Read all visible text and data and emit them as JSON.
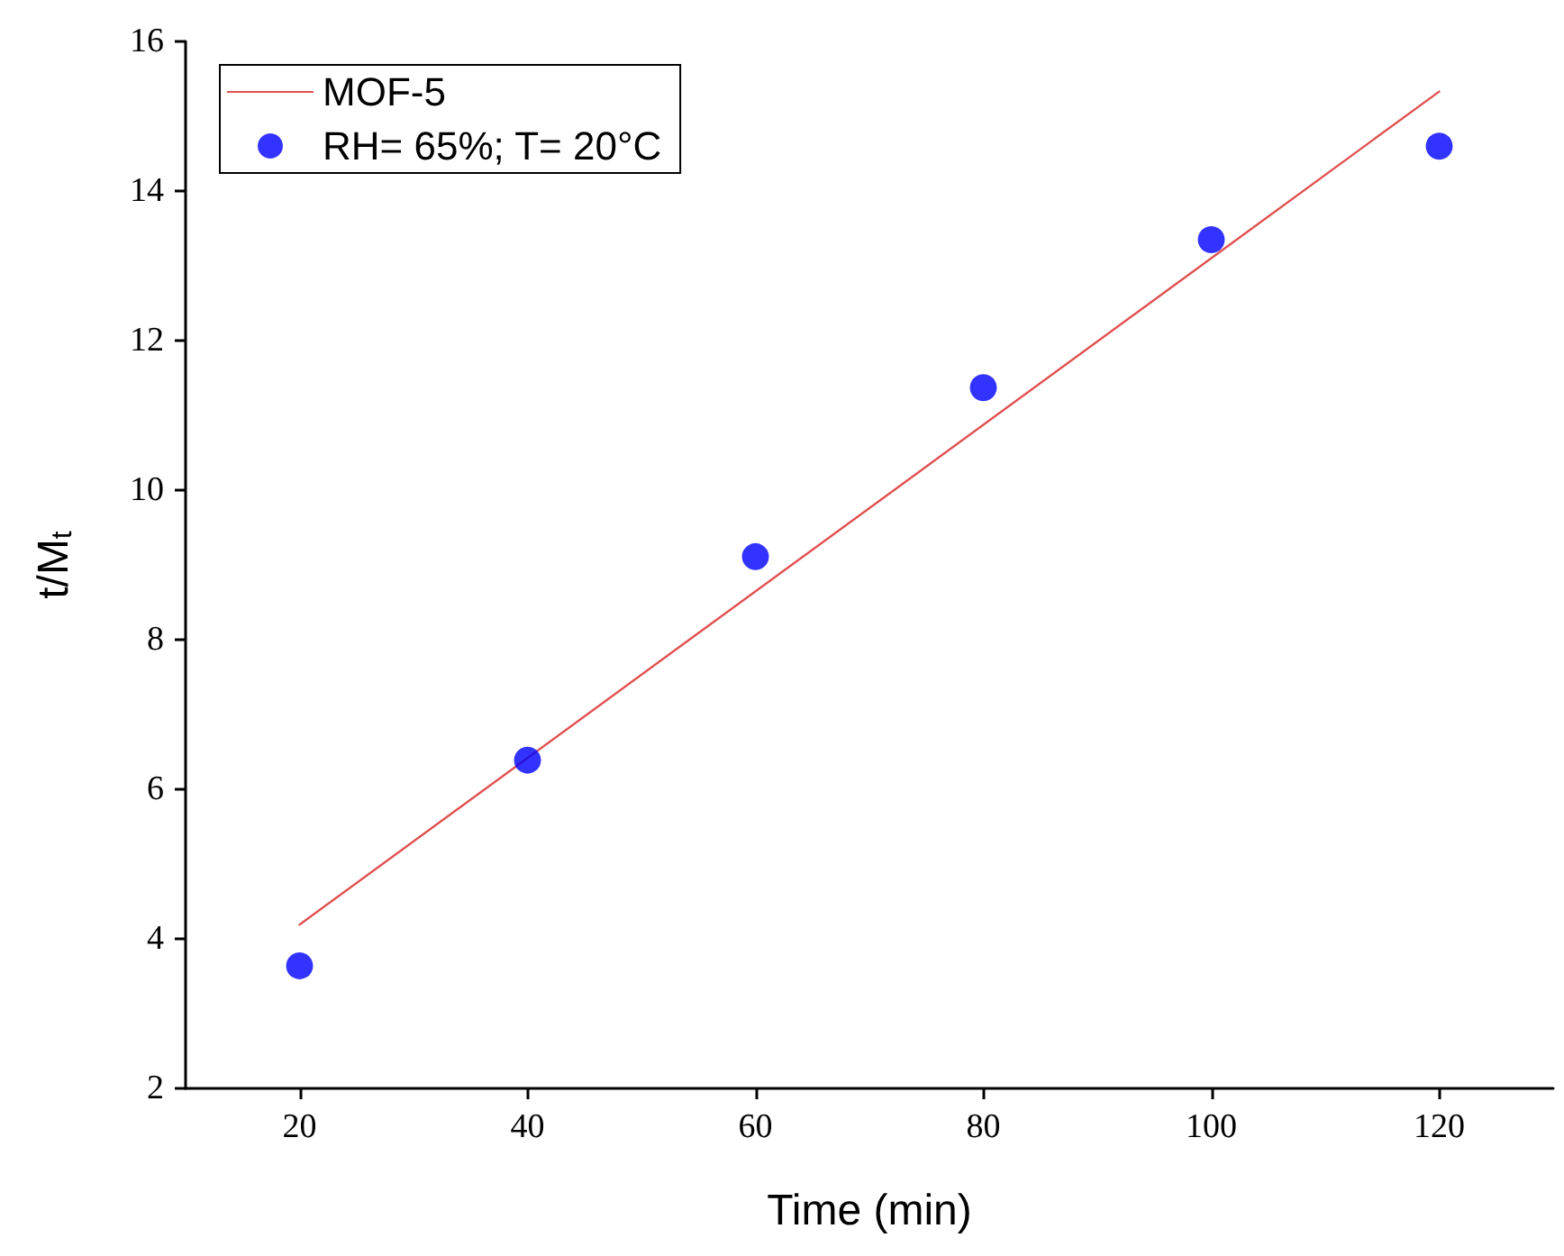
{
  "chart_data": {
    "type": "scatter",
    "xlabel": "Time (min)",
    "ylabel": "t/M$_{t}$",
    "xlim": [
      10,
      130
    ],
    "xticks": [
      20,
      40,
      60,
      80,
      100,
      120
    ],
    "ylim": [
      2,
      16
    ],
    "yticks": [
      2,
      4,
      6,
      8,
      10,
      12,
      14,
      16
    ],
    "legend": "top left",
    "grid": false,
    "series": [
      {
        "name": "MOF-5",
        "type": "line",
        "color": "#e05050",
        "marker": "none",
        "line_style": "solid",
        "x": [
          20,
          120
        ],
        "values": [
          4.19,
          15.33
        ]
      },
      {
        "name": "RH= 65%; T= 20°C",
        "type": "scatter",
        "color": "#0000ff",
        "marker": "circle",
        "x": [
          20,
          40,
          60,
          80,
          100,
          120
        ],
        "values": [
          3.64,
          6.39,
          9.11,
          11.37,
          13.35,
          14.6
        ]
      }
    ]
  }
}
